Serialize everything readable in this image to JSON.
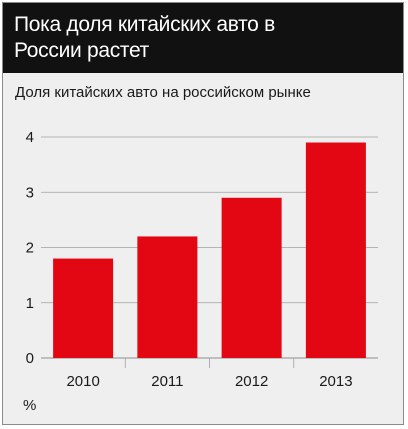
{
  "header": {
    "title": "Пока доля китайских авто в России растет"
  },
  "chart_data": {
    "type": "bar",
    "title": "Доля китайских авто на российском рынке",
    "categories": [
      "2010",
      "2011",
      "2012",
      "2013"
    ],
    "values": [
      1.8,
      2.2,
      2.9,
      3.9
    ],
    "ylabel": "%",
    "ylim": [
      0,
      4
    ],
    "yticks": [
      "0",
      "1",
      "2",
      "3",
      "4"
    ],
    "grid": true,
    "bar_color": "#e30613",
    "grid_color": "#a0a0a0"
  }
}
